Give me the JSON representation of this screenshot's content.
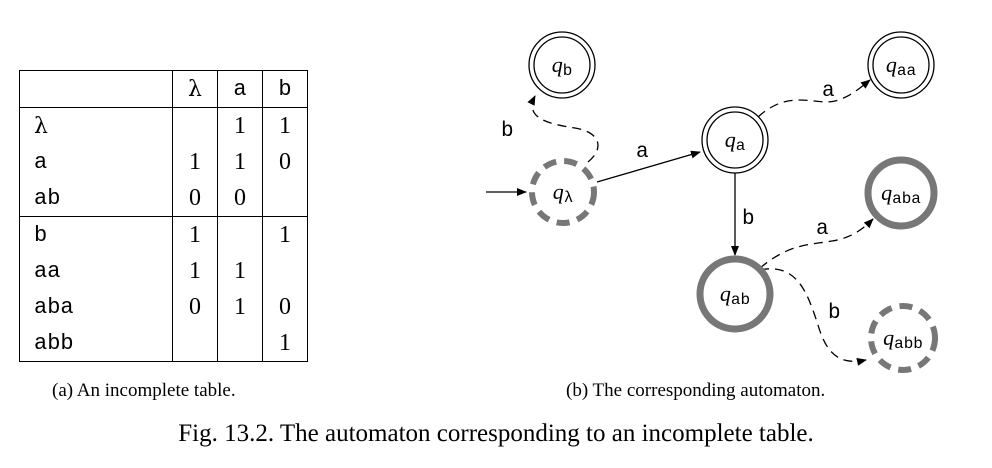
{
  "table": {
    "header": [
      "",
      "λ",
      "a",
      "b"
    ],
    "red_rows": [
      {
        "label": "λ",
        "cells": [
          "",
          "1",
          "1"
        ]
      },
      {
        "label": "a",
        "cells": [
          "1",
          "1",
          "0"
        ]
      },
      {
        "label": "ab",
        "cells": [
          "0",
          "0",
          ""
        ]
      }
    ],
    "blue_rows": [
      {
        "label": "b",
        "cells": [
          "1",
          "",
          "1"
        ]
      },
      {
        "label": "aa",
        "cells": [
          "1",
          "1",
          ""
        ]
      },
      {
        "label": "aba",
        "cells": [
          "0",
          "1",
          "0"
        ]
      },
      {
        "label": "abb",
        "cells": [
          "",
          "",
          "1"
        ]
      }
    ]
  },
  "automaton": {
    "state_symbol": "q",
    "states": {
      "lambda": {
        "sub": "λ"
      },
      "a": {
        "sub": "a"
      },
      "ab": {
        "sub": "ab"
      },
      "b": {
        "sub": "b"
      },
      "aa": {
        "sub": "aa"
      },
      "aba": {
        "sub": "aba"
      },
      "abb": {
        "sub": "abb"
      }
    },
    "edges": {
      "lambda_a": "a",
      "a_ab": "b",
      "lambda_b": "b",
      "a_aa": "a",
      "ab_aba": "a",
      "ab_abb": "b"
    }
  },
  "captions": {
    "a": "(a)  An incomplete table.",
    "b": "(b)  The corresponding automaton.",
    "figure": "Fig. 13.2. The automaton corresponding to an incomplete table."
  }
}
